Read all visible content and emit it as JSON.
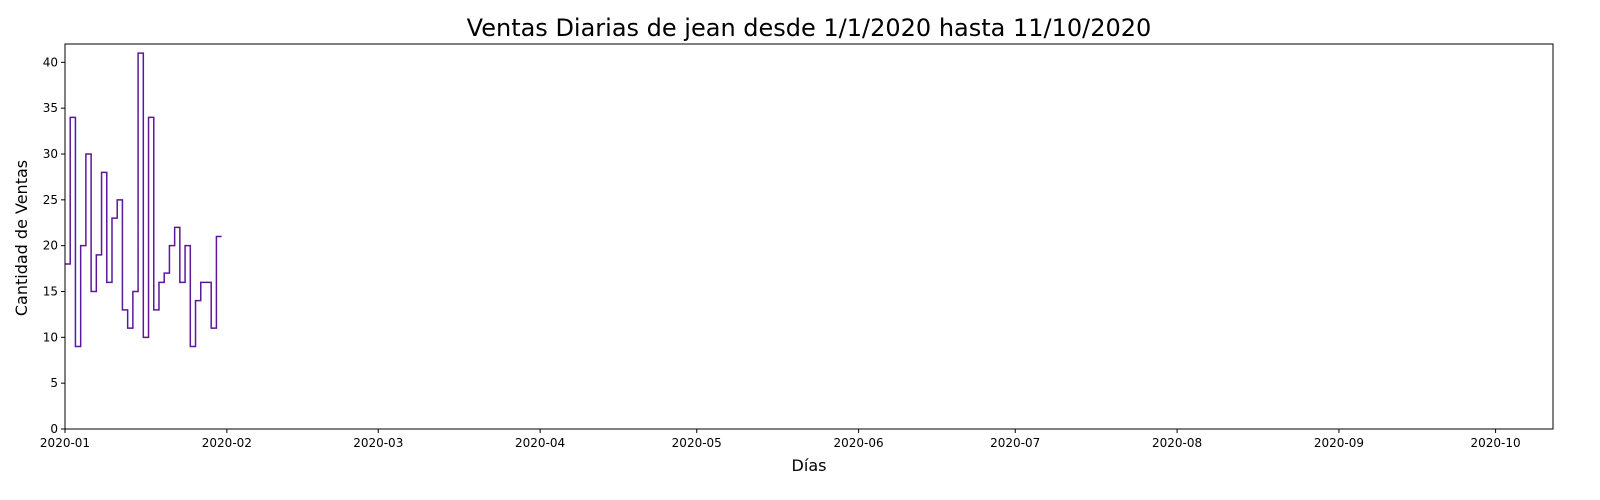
{
  "chart_data": {
    "type": "line",
    "step": "post",
    "title": "Ventas Diarias de jean desde 1/1/2020 hasta 11/10/2020",
    "xlabel": "Días",
    "ylabel": "Cantidad de Ventas",
    "xlim": [
      "2020-01-01",
      "2020-10-12"
    ],
    "ylim": [
      0,
      42
    ],
    "x_ticks": [
      "2020-01",
      "2020-02",
      "2020-03",
      "2020-04",
      "2020-05",
      "2020-06",
      "2020-07",
      "2020-08",
      "2020-09",
      "2020-10"
    ],
    "y_ticks": [
      0,
      5,
      10,
      15,
      20,
      25,
      30,
      35,
      40
    ],
    "grid": false,
    "series": [
      {
        "color": "#5b189a",
        "x": [
          "2020-01-01",
          "2020-01-02",
          "2020-01-03",
          "2020-01-04",
          "2020-01-05",
          "2020-01-06",
          "2020-01-07",
          "2020-01-08",
          "2020-01-09",
          "2020-01-10",
          "2020-01-11",
          "2020-01-12",
          "2020-01-13",
          "2020-01-14",
          "2020-01-15",
          "2020-01-16",
          "2020-01-17",
          "2020-01-18",
          "2020-01-19",
          "2020-01-20",
          "2020-01-21",
          "2020-01-22",
          "2020-01-23",
          "2020-01-24",
          "2020-01-25",
          "2020-01-26",
          "2020-01-27",
          "2020-01-28",
          "2020-01-29",
          "2020-01-30",
          "2020-01-31"
        ],
        "values": [
          18,
          34,
          9,
          20,
          30,
          15,
          19,
          28,
          16,
          23,
          25,
          13,
          11,
          15,
          41,
          10,
          34,
          13,
          16,
          17,
          20,
          22,
          16,
          20,
          9,
          14,
          16,
          16,
          11,
          21,
          21
        ]
      }
    ]
  }
}
